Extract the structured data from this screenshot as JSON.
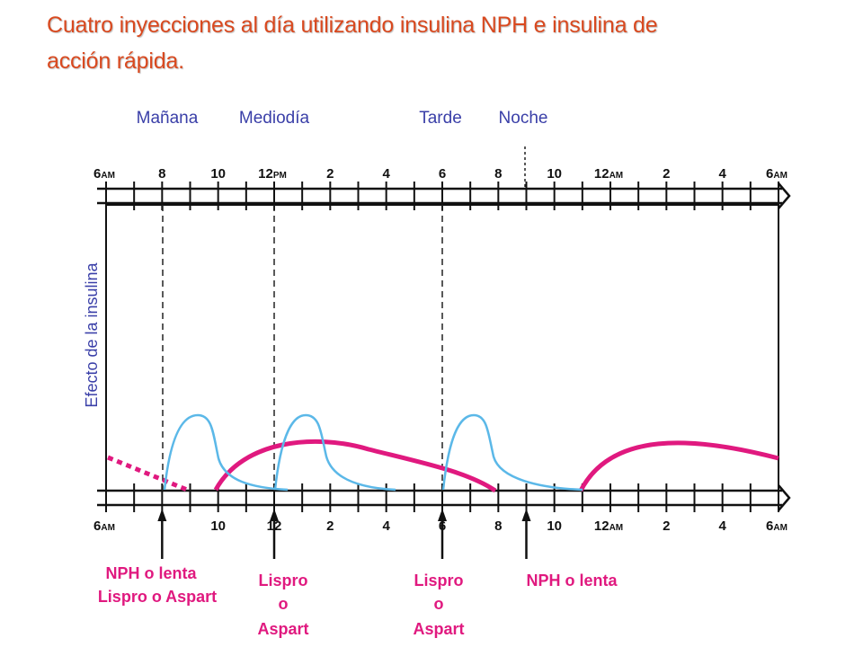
{
  "title": {
    "line1": "Cuatro inyecciones al día utilizando insulina NPH e insulina de",
    "line2": "acción rápida."
  },
  "periods": [
    "Mañana",
    "Mediodía",
    "Tarde",
    "Noche"
  ],
  "y_axis_label": "Efecto de la insulina",
  "top_ticks": [
    {
      "hour": 6,
      "text": "6",
      "suffix": "AM"
    },
    {
      "hour": 8,
      "text": "8",
      "suffix": ""
    },
    {
      "hour": 10,
      "text": "10",
      "suffix": ""
    },
    {
      "hour": 12,
      "text": "12",
      "suffix": "PM"
    },
    {
      "hour": 14,
      "text": "2",
      "suffix": ""
    },
    {
      "hour": 16,
      "text": "4",
      "suffix": ""
    },
    {
      "hour": 18,
      "text": "6",
      "suffix": ""
    },
    {
      "hour": 20,
      "text": "8",
      "suffix": ""
    },
    {
      "hour": 22,
      "text": "10",
      "suffix": ""
    },
    {
      "hour": 24,
      "text": "12",
      "suffix": "AM"
    },
    {
      "hour": 26,
      "text": "2",
      "suffix": ""
    },
    {
      "hour": 28,
      "text": "4",
      "suffix": ""
    },
    {
      "hour": 30,
      "text": "6",
      "suffix": "AM"
    }
  ],
  "bottom_ticks": [
    {
      "hour": 6,
      "text": "6",
      "suffix": "AM"
    },
    {
      "hour": 10,
      "text": "10",
      "suffix": ""
    },
    {
      "hour": 12,
      "text": "12",
      "suffix": ""
    },
    {
      "hour": 14,
      "text": "2",
      "suffix": ""
    },
    {
      "hour": 16,
      "text": "4",
      "suffix": ""
    },
    {
      "hour": 18,
      "text": "6",
      "suffix": ""
    },
    {
      "hour": 20,
      "text": "8",
      "suffix": ""
    },
    {
      "hour": 22,
      "text": "10",
      "suffix": ""
    },
    {
      "hour": 24,
      "text": "12",
      "suffix": "AM"
    },
    {
      "hour": 26,
      "text": "2",
      "suffix": ""
    },
    {
      "hour": 28,
      "text": "4",
      "suffix": ""
    },
    {
      "hour": 30,
      "text": "6",
      "suffix": "AM"
    }
  ],
  "injections": [
    {
      "hour": 8,
      "lines": [
        "NPH o lenta",
        "Lispro o Aspart"
      ]
    },
    {
      "hour": 12,
      "lines": [
        "Lispro",
        "o",
        "Aspart"
      ]
    },
    {
      "hour": 18,
      "lines": [
        "Lispro",
        "o",
        "Aspart"
      ]
    },
    {
      "hour": 21,
      "lines": [
        "NPH o lenta"
      ]
    }
  ],
  "colors": {
    "title": "#d9491f",
    "label_blue": "#3a3fa8",
    "rapid_curve": "#5bb8e8",
    "nph_curve": "#e0197f"
  }
}
